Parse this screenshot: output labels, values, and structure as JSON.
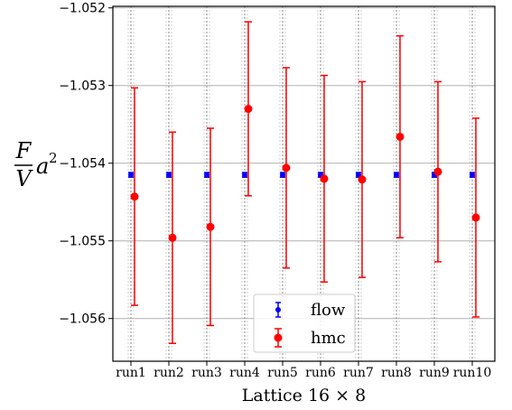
{
  "chart_data": {
    "type": "scatter",
    "categories": [
      "run1",
      "run2",
      "run3",
      "run4",
      "run5",
      "run6",
      "run7",
      "run8",
      "run9",
      "run10"
    ],
    "series": [
      {
        "name": "flow",
        "color": "#0000ff",
        "marker": "small-circle",
        "values": [
          -1.05415,
          -1.05415,
          -1.05415,
          -1.05415,
          -1.05415,
          -1.05415,
          -1.05415,
          -1.05415,
          -1.05415,
          -1.05415
        ],
        "errors": [
          3e-05,
          3e-05,
          3e-05,
          3e-05,
          3e-05,
          3e-05,
          3e-05,
          3e-05,
          3e-05,
          3e-05
        ]
      },
      {
        "name": "hmc",
        "color": "#ff0000",
        "marker": "circle",
        "values": [
          -1.05443,
          -1.05496,
          -1.05482,
          -1.0533,
          -1.05406,
          -1.0542,
          -1.05421,
          -1.05366,
          -1.05411,
          -1.0547
        ],
        "errors": [
          0.0014,
          0.00136,
          0.00127,
          0.00112,
          0.00129,
          0.00133,
          0.00126,
          0.0013,
          0.00116,
          0.00128
        ]
      }
    ],
    "xlabel": "Lattice 16 × 8",
    "ylabel": {
      "frac_num": "F",
      "frac_den": "V",
      "rest": "a",
      "exp": "2"
    },
    "ylim": [
      -1.05655,
      -1.05198
    ],
    "yticks": [
      -1.056,
      -1.055,
      -1.054,
      -1.053,
      -1.052
    ],
    "ytick_labels": [
      "−1.056",
      "−1.055",
      "−1.054",
      "−1.053",
      "−1.052"
    ],
    "grid": true,
    "legend": {
      "placement": "bottom-center"
    }
  }
}
